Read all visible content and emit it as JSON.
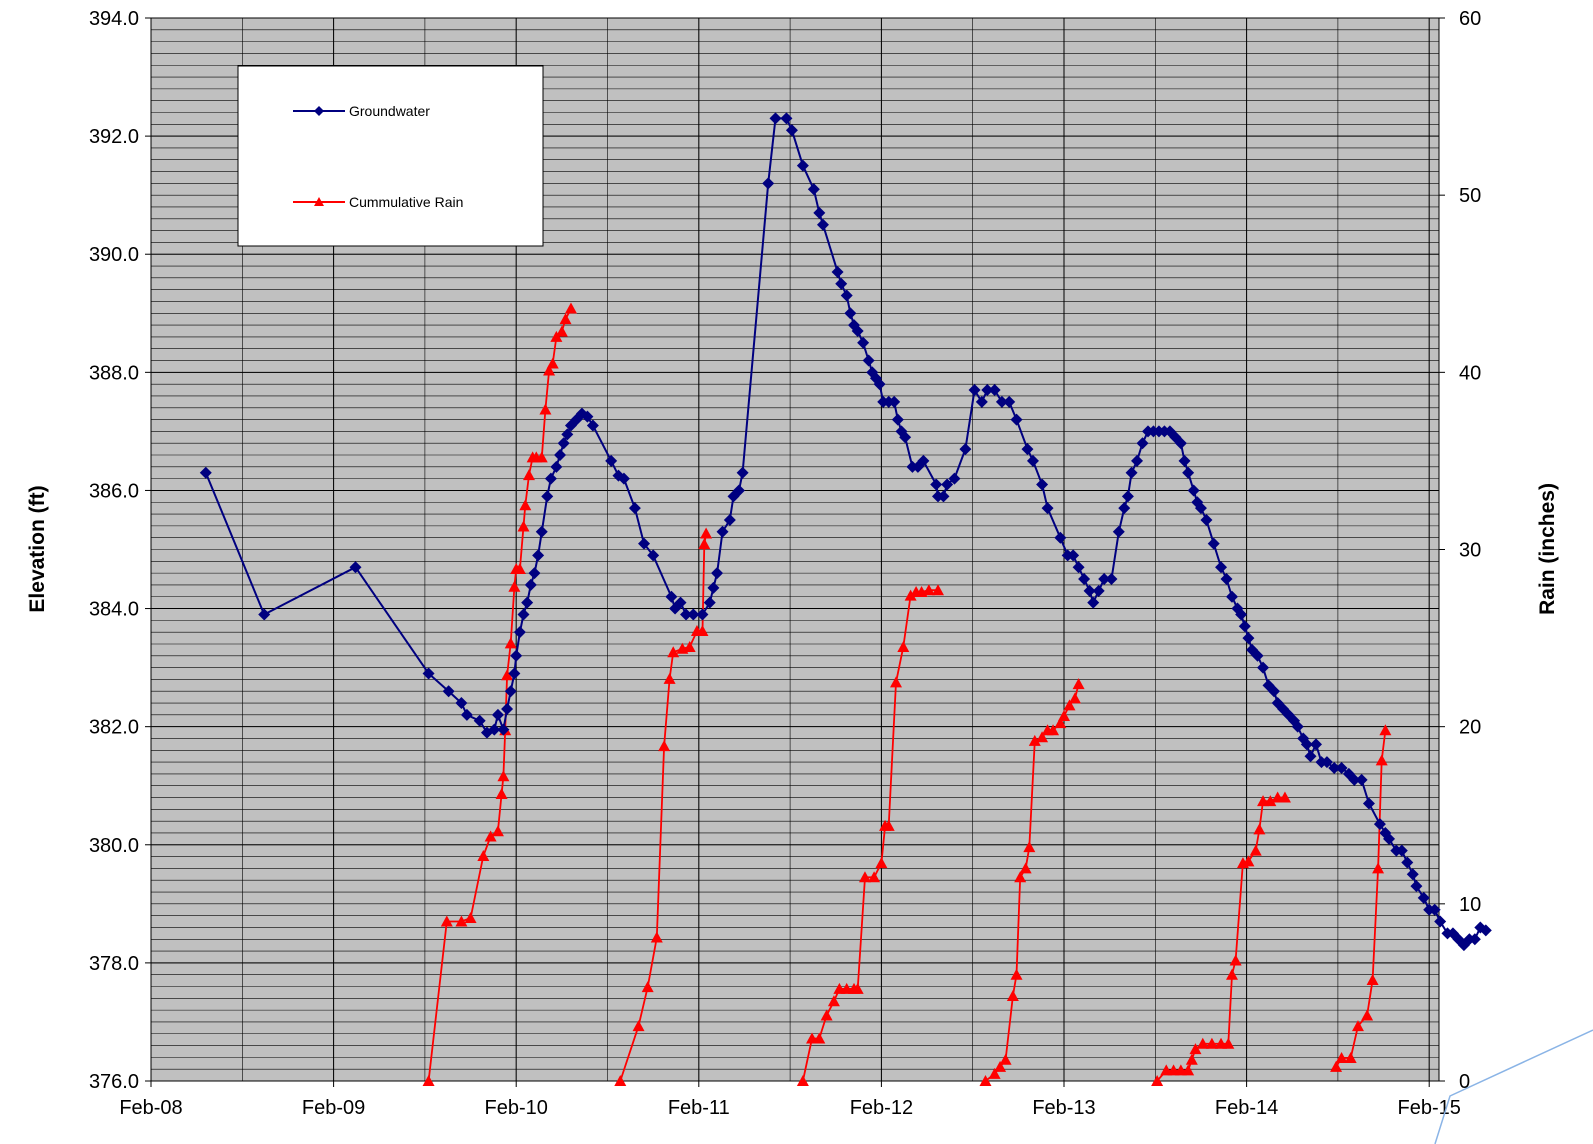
{
  "chart_data": {
    "type": "line",
    "title": "",
    "ylabel": "Elevation (ft)",
    "y2label": "Rain (inches)",
    "ylim": [
      376,
      394
    ],
    "y_ticks": [
      "376.0",
      "378.0",
      "380.0",
      "382.0",
      "384.0",
      "386.0",
      "388.0",
      "390.0",
      "392.0",
      "394.0"
    ],
    "y2lim": [
      0,
      60
    ],
    "y2_ticks": [
      "0",
      "10",
      "20",
      "30",
      "40",
      "50",
      "60"
    ],
    "xlim": [
      0,
      7.25
    ],
    "x_ticks": [
      "Feb-08",
      "Feb-09",
      "Feb-10",
      "Feb-11",
      "Feb-12",
      "Feb-13",
      "Feb-14",
      "Feb-15"
    ],
    "grid": true,
    "background": "#c0c0c0",
    "legend_position": "top-left",
    "series": [
      {
        "name": "Groundwater",
        "axis": "left",
        "color": "#000080",
        "marker": "diamond",
        "points": [
          [
            0.3,
            386.3
          ],
          [
            0.62,
            383.9
          ],
          [
            1.12,
            384.7
          ],
          [
            1.52,
            382.9
          ],
          [
            1.63,
            382.6
          ],
          [
            1.7,
            382.4
          ],
          [
            1.73,
            382.2
          ],
          [
            1.8,
            382.1
          ],
          [
            1.84,
            381.9
          ],
          [
            1.88,
            381.95
          ],
          [
            1.9,
            382.2
          ],
          [
            1.93,
            381.95
          ],
          [
            1.95,
            382.3
          ],
          [
            1.97,
            382.6
          ],
          [
            1.99,
            382.9
          ],
          [
            2.0,
            383.2
          ],
          [
            2.02,
            383.6
          ],
          [
            2.04,
            383.9
          ],
          [
            2.06,
            384.1
          ],
          [
            2.08,
            384.4
          ],
          [
            2.1,
            384.6
          ],
          [
            2.12,
            384.9
          ],
          [
            2.14,
            385.3
          ],
          [
            2.17,
            385.9
          ],
          [
            2.19,
            386.2
          ],
          [
            2.22,
            386.4
          ],
          [
            2.24,
            386.6
          ],
          [
            2.26,
            386.8
          ],
          [
            2.28,
            386.95
          ],
          [
            2.3,
            387.1
          ],
          [
            2.33,
            387.2
          ],
          [
            2.36,
            387.3
          ],
          [
            2.39,
            387.25
          ],
          [
            2.42,
            387.1
          ],
          [
            2.52,
            386.5
          ],
          [
            2.56,
            386.25
          ],
          [
            2.59,
            386.2
          ],
          [
            2.65,
            385.7
          ],
          [
            2.7,
            385.1
          ],
          [
            2.75,
            384.9
          ],
          [
            2.85,
            384.2
          ],
          [
            2.87,
            384.0
          ],
          [
            2.9,
            384.1
          ],
          [
            2.93,
            383.9
          ],
          [
            2.97,
            383.9
          ],
          [
            3.02,
            383.9
          ],
          [
            3.06,
            384.1
          ],
          [
            3.08,
            384.35
          ],
          [
            3.1,
            384.6
          ],
          [
            3.13,
            385.3
          ],
          [
            3.17,
            385.5
          ],
          [
            3.19,
            385.9
          ],
          [
            3.22,
            386.0
          ],
          [
            3.24,
            386.3
          ],
          [
            3.38,
            391.2
          ],
          [
            3.42,
            392.3
          ],
          [
            3.48,
            392.3
          ],
          [
            3.51,
            392.1
          ],
          [
            3.57,
            391.5
          ],
          [
            3.63,
            391.1
          ],
          [
            3.66,
            390.7
          ],
          [
            3.68,
            390.5
          ],
          [
            3.76,
            389.7
          ],
          [
            3.78,
            389.5
          ],
          [
            3.81,
            389.3
          ],
          [
            3.83,
            389.0
          ],
          [
            3.85,
            388.8
          ],
          [
            3.87,
            388.7
          ],
          [
            3.9,
            388.5
          ],
          [
            3.93,
            388.2
          ],
          [
            3.95,
            388.0
          ],
          [
            3.97,
            387.9
          ],
          [
            3.99,
            387.8
          ],
          [
            4.01,
            387.5
          ],
          [
            4.04,
            387.5
          ],
          [
            4.07,
            387.5
          ],
          [
            4.09,
            387.2
          ],
          [
            4.11,
            387.0
          ],
          [
            4.13,
            386.9
          ],
          [
            4.17,
            386.4
          ],
          [
            4.2,
            386.4
          ],
          [
            4.23,
            386.5
          ],
          [
            4.3,
            386.1
          ],
          [
            4.31,
            385.9
          ],
          [
            4.34,
            385.9
          ],
          [
            4.36,
            386.1
          ],
          [
            4.4,
            386.2
          ],
          [
            4.46,
            386.7
          ],
          [
            4.51,
            387.7
          ],
          [
            4.55,
            387.5
          ],
          [
            4.58,
            387.7
          ],
          [
            4.62,
            387.7
          ],
          [
            4.66,
            387.5
          ],
          [
            4.7,
            387.5
          ],
          [
            4.74,
            387.2
          ],
          [
            4.8,
            386.7
          ],
          [
            4.83,
            386.5
          ],
          [
            4.88,
            386.1
          ],
          [
            4.91,
            385.7
          ],
          [
            4.98,
            385.2
          ],
          [
            5.02,
            384.9
          ],
          [
            5.05,
            384.9
          ],
          [
            5.08,
            384.7
          ],
          [
            5.11,
            384.5
          ],
          [
            5.14,
            384.3
          ],
          [
            5.16,
            384.1
          ],
          [
            5.19,
            384.3
          ],
          [
            5.22,
            384.5
          ],
          [
            5.26,
            384.5
          ],
          [
            5.3,
            385.3
          ],
          [
            5.33,
            385.7
          ],
          [
            5.35,
            385.9
          ],
          [
            5.37,
            386.3
          ],
          [
            5.4,
            386.5
          ],
          [
            5.43,
            386.8
          ],
          [
            5.46,
            387.0
          ],
          [
            5.49,
            387.0
          ],
          [
            5.52,
            387.0
          ],
          [
            5.55,
            387.0
          ],
          [
            5.58,
            387.0
          ],
          [
            5.61,
            386.9
          ],
          [
            5.64,
            386.8
          ],
          [
            5.66,
            386.5
          ],
          [
            5.68,
            386.3
          ],
          [
            5.71,
            386.0
          ],
          [
            5.73,
            385.8
          ],
          [
            5.75,
            385.7
          ],
          [
            5.78,
            385.5
          ],
          [
            5.82,
            385.1
          ],
          [
            5.86,
            384.7
          ],
          [
            5.89,
            384.5
          ],
          [
            5.92,
            384.2
          ],
          [
            5.95,
            384.0
          ],
          [
            5.97,
            383.9
          ],
          [
            5.99,
            383.7
          ],
          [
            6.01,
            383.5
          ],
          [
            6.03,
            383.3
          ],
          [
            6.06,
            383.2
          ],
          [
            6.09,
            383.0
          ],
          [
            6.12,
            382.7
          ],
          [
            6.15,
            382.6
          ],
          [
            6.17,
            382.4
          ],
          [
            6.2,
            382.3
          ],
          [
            6.23,
            382.2
          ],
          [
            6.26,
            382.1
          ],
          [
            6.28,
            382.0
          ],
          [
            6.31,
            381.8
          ],
          [
            6.33,
            381.7
          ],
          [
            6.35,
            381.5
          ],
          [
            6.38,
            381.7
          ],
          [
            6.41,
            381.4
          ],
          [
            6.44,
            381.4
          ],
          [
            6.48,
            381.3
          ],
          [
            6.52,
            381.3
          ],
          [
            6.56,
            381.2
          ],
          [
            6.59,
            381.1
          ],
          [
            6.63,
            381.1
          ],
          [
            6.67,
            380.7
          ],
          [
            6.73,
            380.35
          ],
          [
            6.76,
            380.2
          ],
          [
            6.78,
            380.1
          ],
          [
            6.82,
            379.9
          ],
          [
            6.85,
            379.9
          ],
          [
            6.88,
            379.7
          ],
          [
            6.91,
            379.5
          ],
          [
            6.93,
            379.3
          ],
          [
            6.97,
            379.1
          ],
          [
            7.0,
            378.9
          ],
          [
            7.03,
            378.9
          ],
          [
            7.06,
            378.7
          ],
          [
            7.1,
            378.5
          ],
          [
            7.13,
            378.5
          ],
          [
            7.16,
            378.4
          ],
          [
            7.19,
            378.3
          ],
          [
            7.22,
            378.4
          ],
          [
            7.25,
            378.4
          ],
          [
            7.28,
            378.6
          ],
          [
            7.31,
            378.55
          ]
        ]
      },
      {
        "name": "Cummulative Rain",
        "axis": "right",
        "color": "#ff0000",
        "marker": "triangle",
        "segments": [
          [
            [
              1.52,
              0
            ],
            [
              1.62,
              9.0
            ],
            [
              1.7,
              9.0
            ],
            [
              1.75,
              9.2
            ],
            [
              1.82,
              12.7
            ],
            [
              1.86,
              13.8
            ],
            [
              1.9,
              14.1
            ],
            [
              1.92,
              16.2
            ],
            [
              1.93,
              17.2
            ],
            [
              1.94,
              19.8
            ],
            [
              1.95,
              22.9
            ],
            [
              1.97,
              24.7
            ],
            [
              1.99,
              27.9
            ],
            [
              2.0,
              28.9
            ],
            [
              2.02,
              28.9
            ],
            [
              2.04,
              31.3
            ],
            [
              2.05,
              32.5
            ],
            [
              2.07,
              34.2
            ],
            [
              2.09,
              35.2
            ],
            [
              2.11,
              35.2
            ],
            [
              2.14,
              35.2
            ],
            [
              2.16,
              37.9
            ],
            [
              2.18,
              40.1
            ],
            [
              2.2,
              40.5
            ],
            [
              2.22,
              42.0
            ],
            [
              2.25,
              42.3
            ],
            [
              2.27,
              43.0
            ],
            [
              2.3,
              43.6
            ]
          ],
          [
            [
              2.57,
              0
            ],
            [
              2.67,
              3.1
            ],
            [
              2.72,
              5.3
            ],
            [
              2.77,
              8.1
            ],
            [
              2.81,
              18.9
            ],
            [
              2.84,
              22.7
            ],
            [
              2.86,
              24.2
            ],
            [
              2.91,
              24.4
            ],
            [
              2.95,
              24.5
            ],
            [
              2.99,
              25.4
            ],
            [
              3.02,
              25.4
            ],
            [
              3.03,
              30.3
            ],
            [
              3.04,
              30.9
            ]
          ],
          [
            [
              3.57,
              0
            ],
            [
              3.62,
              2.4
            ],
            [
              3.66,
              2.4
            ],
            [
              3.7,
              3.7
            ],
            [
              3.74,
              4.5
            ],
            [
              3.77,
              5.2
            ],
            [
              3.81,
              5.2
            ],
            [
              3.85,
              5.2
            ],
            [
              3.87,
              5.2
            ],
            [
              3.91,
              11.5
            ],
            [
              3.96,
              11.5
            ],
            [
              4.0,
              12.3
            ],
            [
              4.02,
              14.4
            ],
            [
              4.04,
              14.4
            ],
            [
              4.08,
              22.5
            ],
            [
              4.12,
              24.5
            ],
            [
              4.16,
              27.4
            ],
            [
              4.19,
              27.6
            ],
            [
              4.22,
              27.6
            ],
            [
              4.26,
              27.7
            ],
            [
              4.31,
              27.7
            ]
          ],
          [
            [
              4.57,
              0
            ],
            [
              4.62,
              0.4
            ],
            [
              4.65,
              0.8
            ],
            [
              4.68,
              1.2
            ],
            [
              4.72,
              4.8
            ],
            [
              4.74,
              6.0
            ],
            [
              4.76,
              11.5
            ],
            [
              4.79,
              12.0
            ],
            [
              4.81,
              13.2
            ],
            [
              4.84,
              19.2
            ],
            [
              4.88,
              19.4
            ],
            [
              4.91,
              19.8
            ],
            [
              4.94,
              19.8
            ],
            [
              4.98,
              20.2
            ],
            [
              5.0,
              20.6
            ],
            [
              5.03,
              21.2
            ],
            [
              5.06,
              21.6
            ],
            [
              5.08,
              22.4
            ]
          ],
          [
            [
              5.51,
              0
            ],
            [
              5.56,
              0.6
            ],
            [
              5.6,
              0.6
            ],
            [
              5.64,
              0.6
            ],
            [
              5.68,
              0.6
            ],
            [
              5.7,
              1.2
            ],
            [
              5.72,
              1.8
            ],
            [
              5.76,
              2.1
            ],
            [
              5.81,
              2.1
            ],
            [
              5.86,
              2.1
            ],
            [
              5.9,
              2.1
            ],
            [
              5.92,
              6.0
            ],
            [
              5.94,
              6.8
            ],
            [
              5.98,
              12.3
            ],
            [
              6.01,
              12.4
            ],
            [
              6.05,
              13.0
            ],
            [
              6.07,
              14.2
            ],
            [
              6.09,
              15.8
            ],
            [
              6.13,
              15.8
            ],
            [
              6.17,
              16.0
            ],
            [
              6.21,
              16.0
            ]
          ],
          [
            [
              6.49,
              0.8
            ],
            [
              6.52,
              1.3
            ],
            [
              6.57,
              1.3
            ],
            [
              6.61,
              3.1
            ],
            [
              6.66,
              3.7
            ],
            [
              6.69,
              5.7
            ],
            [
              6.72,
              12.0
            ],
            [
              6.74,
              18.1
            ],
            [
              6.76,
              19.8
            ]
          ]
        ]
      }
    ]
  }
}
